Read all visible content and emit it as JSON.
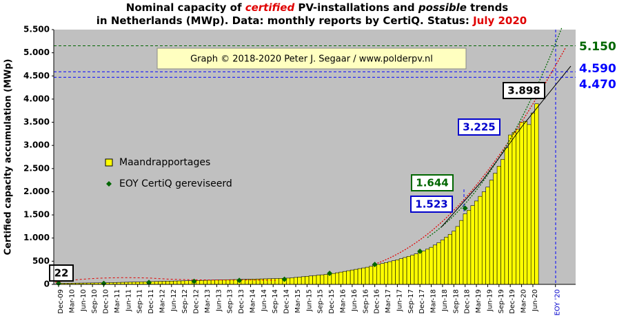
{
  "chart_data": {
    "type": "bar",
    "title_line1": [
      "Nominal  capacity  of ",
      "certified",
      " PV-installations  and ",
      "possible",
      " trends"
    ],
    "title_line2": [
      "in Netherlands (MWp). Data: monthly  reports by CertiQ. Status: ",
      "July 2020"
    ],
    "ylabel": "Certified capacity accumulation (MWp)",
    "credit": "Graph © 2018-2020 Peter J. Segaar / www.polderpv.nl",
    "categories": [
      "Dec-09",
      null,
      null,
      "Mar-10",
      null,
      null,
      "Jun-10",
      null,
      null,
      "Sep-10",
      null,
      null,
      "Dec-10",
      null,
      null,
      "Mar-11",
      null,
      null,
      "Jun-11",
      null,
      null,
      "Sep-11",
      null,
      null,
      "Dec-11",
      null,
      null,
      "Mar-12",
      null,
      null,
      "Jun-12",
      null,
      null,
      "Sep-12",
      null,
      null,
      "Dec-12",
      null,
      null,
      "Mar-13",
      null,
      null,
      "Jun-13",
      null,
      null,
      "Sep-13",
      null,
      null,
      "Dec-13",
      null,
      null,
      "Mar-14",
      null,
      null,
      "Jun-14",
      null,
      null,
      "Sep-14",
      null,
      null,
      "Dec-14",
      null,
      null,
      "Mar-15",
      null,
      null,
      "Jun-15",
      null,
      null,
      "Sep-15",
      null,
      null,
      "Dec-15",
      null,
      null,
      "Mar-16",
      null,
      null,
      "Jun-16",
      null,
      null,
      "Sep-16",
      null,
      null,
      "Dec-16",
      null,
      null,
      "Mar-17",
      null,
      null,
      "Jun-17",
      null,
      null,
      "Sep-17",
      null,
      null,
      "Dec-17",
      null,
      null,
      "Mar-18",
      null,
      null,
      "Jun-18",
      null,
      null,
      "Sep-18",
      null,
      null,
      "Dec-18",
      null,
      null,
      "Mar-19",
      null,
      null,
      "Jun-19",
      null,
      null,
      "Sep-19",
      null,
      null,
      "Dec-19",
      null,
      null,
      "Mar-20",
      null,
      null,
      "Jun-20",
      null,
      null,
      null,
      null,
      null,
      "EOY '20"
    ],
    "series": [
      {
        "name": "Maandrapportages",
        "color": "#ffff00",
        "values": [
          22,
          23,
          24,
          25,
          26,
          27,
          28,
          29,
          30,
          31,
          32,
          33,
          34,
          36,
          38,
          40,
          42,
          44,
          46,
          48,
          50,
          52,
          54,
          56,
          58,
          60,
          62,
          64,
          66,
          68,
          70,
          72,
          74,
          76,
          78,
          80,
          82,
          84,
          86,
          88,
          90,
          92,
          94,
          96,
          98,
          100,
          102,
          104,
          106,
          108,
          110,
          112,
          114,
          116,
          118,
          120,
          122,
          124,
          126,
          128,
          130,
          135,
          142,
          150,
          158,
          166,
          174,
          182,
          190,
          198,
          206,
          214,
          222,
          235,
          250,
          265,
          280,
          295,
          310,
          325,
          340,
          355,
          370,
          390,
          415,
          430,
          450,
          470,
          490,
          510,
          530,
          555,
          580,
          605,
          630,
          660,
          690,
          720,
          760,
          800,
          850,
          900,
          960,
          1020,
          1080,
          1150,
          1250,
          1380,
          1523,
          1600,
          1700,
          1800,
          1900,
          2000,
          2100,
          2250,
          2400,
          2550,
          2700,
          2950,
          3225,
          3280,
          3350,
          3500,
          3520,
          3450,
          3700,
          3898,
          null,
          null,
          null,
          null,
          null
        ]
      },
      {
        "name": "EOY CertiQ gereviseerd",
        "color": "#006600",
        "values": [
          22,
          null,
          null,
          null,
          null,
          null,
          null,
          null,
          null,
          null,
          null,
          null,
          20,
          null,
          null,
          null,
          null,
          null,
          null,
          null,
          null,
          null,
          null,
          null,
          40,
          null,
          null,
          null,
          null,
          null,
          null,
          null,
          null,
          null,
          null,
          null,
          65,
          null,
          null,
          null,
          null,
          null,
          null,
          null,
          null,
          null,
          null,
          null,
          85,
          null,
          null,
          null,
          null,
          null,
          null,
          null,
          null,
          null,
          null,
          null,
          110,
          null,
          null,
          null,
          null,
          null,
          null,
          null,
          null,
          null,
          null,
          null,
          238,
          null,
          null,
          null,
          null,
          null,
          null,
          null,
          null,
          null,
          null,
          null,
          430,
          null,
          null,
          null,
          null,
          null,
          null,
          null,
          null,
          null,
          null,
          null,
          713,
          null,
          null,
          null,
          null,
          null,
          null,
          null,
          null,
          null,
          null,
          null,
          1644,
          null,
          null,
          null,
          null,
          null,
          null,
          null,
          null,
          null,
          null,
          null,
          null,
          null,
          null,
          null,
          null,
          null,
          null,
          null,
          null,
          null,
          null,
          null,
          null
        ]
      }
    ],
    "ylim": [
      0,
      5500
    ],
    "yticks": [
      0,
      {
        "value": 500,
        "label": "500"
      },
      {
        "value": 1000,
        "label": "1.000"
      },
      {
        "value": 1500,
        "label": "1.500"
      },
      {
        "value": 2000,
        "label": "2.000"
      },
      {
        "value": 2500,
        "label": "2.500"
      },
      {
        "value": 3000,
        "label": "3.000"
      },
      {
        "value": 3500,
        "label": "3.500"
      },
      {
        "value": 4000,
        "label": "4.000"
      },
      {
        "value": 4500,
        "label": "4.500"
      },
      {
        "value": 5000,
        "label": "5.000"
      },
      {
        "value": 5500,
        "label": "5.500"
      }
    ],
    "reference_lines": [
      {
        "value": 5150,
        "label": "5.150",
        "color": "#006600"
      },
      {
        "value": 4590,
        "label": "4.590",
        "color": "#0000ff"
      },
      {
        "value": 4470,
        "label": "4.470",
        "color": "#0000ff"
      }
    ],
    "annotations": [
      {
        "value": 22,
        "label": "22",
        "color": "#000000"
      },
      {
        "value": 1644,
        "label": "1.644",
        "color": "#006600"
      },
      {
        "value": 1523,
        "label": "1.523",
        "color": "#0000cc"
      },
      {
        "value": 3225,
        "label": "3.225",
        "color": "#0000cc"
      },
      {
        "value": 3898,
        "label": "3.898",
        "color": "#000000"
      }
    ],
    "grid": false
  }
}
